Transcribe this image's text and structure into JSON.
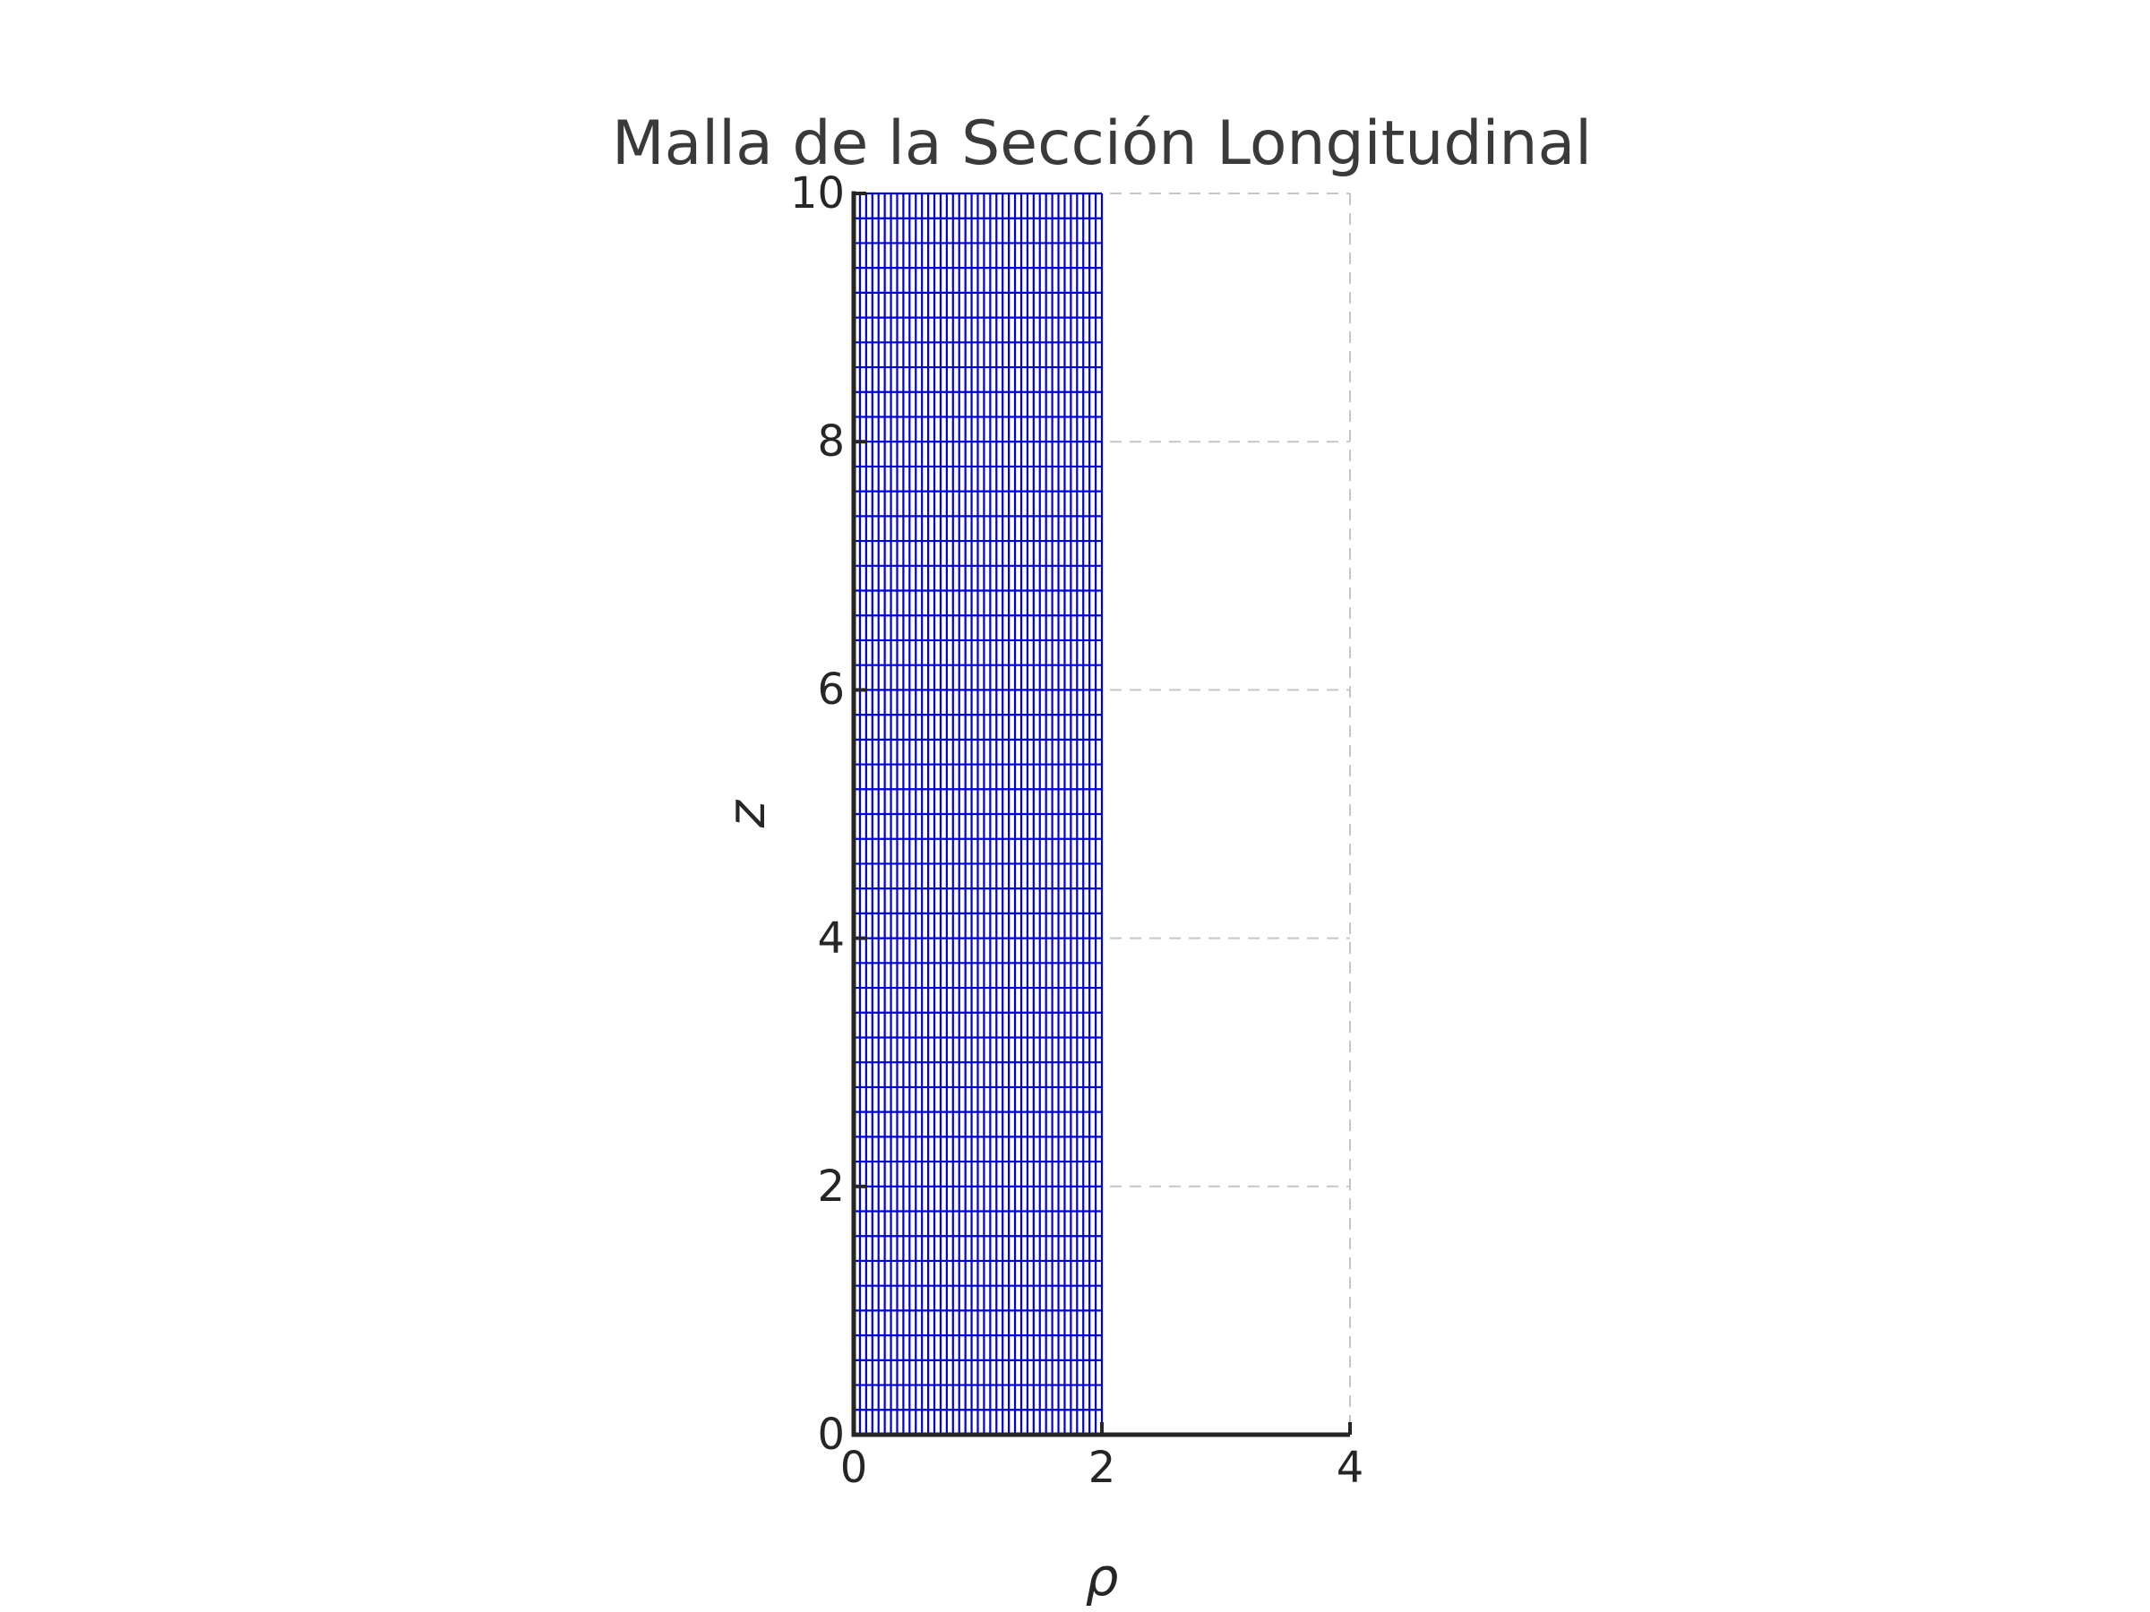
{
  "chart_data": {
    "type": "line",
    "subtype": "structured-mesh-grid",
    "title": "Malla de la Sección Longitudinal",
    "xlabel": "ρ",
    "ylabel": "z",
    "xlim": [
      0,
      4
    ],
    "ylim": [
      0,
      10
    ],
    "xticks": [
      0,
      2,
      4
    ],
    "yticks": [
      0,
      2,
      4,
      6,
      8,
      10
    ],
    "aspect": "equal",
    "legend": "none",
    "grid": {
      "visible": true,
      "linestyle": "dashed",
      "color": "#c6c6c6",
      "linewidth": 2,
      "x_lines": [
        2,
        4
      ],
      "y_lines": [
        2,
        4,
        6,
        8,
        10
      ]
    },
    "mesh": {
      "rho_range": [
        0,
        2
      ],
      "z_range": [
        0,
        10
      ],
      "n_rho_lines": 41,
      "n_z_lines": 51,
      "rho_step": 0.05,
      "z_step": 0.2,
      "color": "#0000dd",
      "linewidth": 2.2
    },
    "style": {
      "background": "#ffffff",
      "title_color": "#3a3a3a",
      "tick_text_color": "#262626",
      "spine_color": "#262626",
      "spine_width": 5,
      "tick_length": 14,
      "tick_width": 4,
      "ticks_direction": "in",
      "visible_spines": [
        "left",
        "bottom"
      ]
    }
  }
}
